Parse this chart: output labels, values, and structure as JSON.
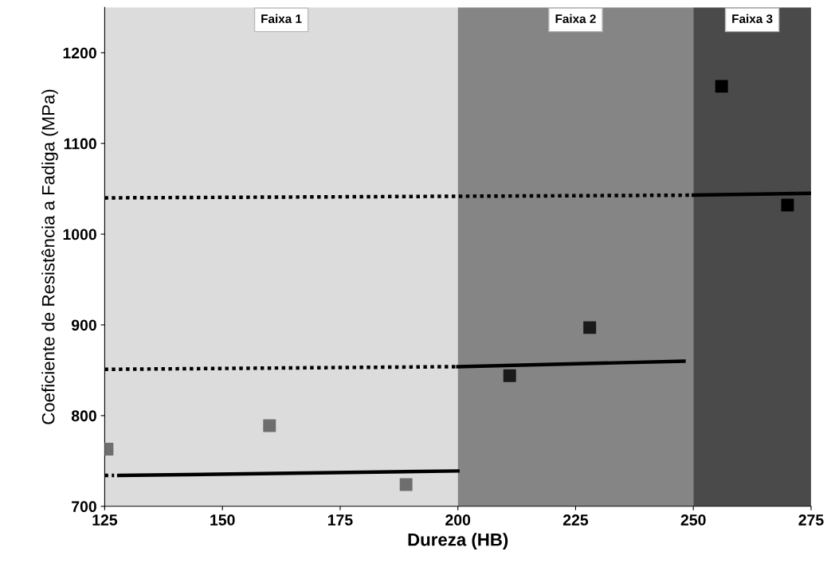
{
  "chart_data": {
    "type": "scatter",
    "xlabel": "Dureza (HB)",
    "ylabel": "Coeficiente de Resistência a Fadiga (MPa)",
    "xlim": [
      125,
      275
    ],
    "xticks": [
      125,
      150,
      175,
      200,
      225,
      250,
      275
    ],
    "ylim": [
      700,
      1250
    ],
    "yticks": [
      700,
      800,
      900,
      1000,
      1100,
      1200
    ],
    "grid": false,
    "marker": "square",
    "bands": [
      {
        "axis": "x",
        "from": 125,
        "to": 200,
        "label": "Faixa 1",
        "color": "#dcdcdc"
      },
      {
        "axis": "x",
        "from": 200,
        "to": 250,
        "label": "Faixa 2",
        "color": "#858585"
      },
      {
        "axis": "x",
        "from": 250,
        "to": 275,
        "label": "Faixa 3",
        "color": "#4a4a4a"
      }
    ],
    "series": [
      {
        "color": "#6e6e6e",
        "x": [
          125.5,
          160,
          189
        ],
        "values": [
          763,
          789,
          724
        ]
      },
      {
        "color": "#1a1a1a",
        "x": [
          211,
          228
        ],
        "values": [
          844,
          897
        ]
      },
      {
        "color": "#000000",
        "x": [
          256,
          270
        ],
        "values": [
          1163,
          1032
        ]
      },
      {
        "type": "line",
        "marker": "none",
        "color": "#000000",
        "line_style": "dotted",
        "x": [
          125,
          127
        ],
        "values": [
          734,
          734
        ]
      },
      {
        "type": "line",
        "marker": "none",
        "color": "#000000",
        "line_style": "solid",
        "x": [
          128,
          200
        ],
        "values": [
          734,
          739
        ]
      },
      {
        "type": "line",
        "marker": "none",
        "color": "#000000",
        "line_style": "dotted",
        "x": [
          125,
          200
        ],
        "values": [
          851,
          854
        ]
      },
      {
        "type": "line",
        "marker": "none",
        "color": "#000000",
        "line_style": "solid",
        "x": [
          200,
          248
        ],
        "values": [
          854,
          860
        ]
      },
      {
        "type": "line",
        "marker": "none",
        "color": "#000000",
        "line_style": "dotted",
        "x": [
          125,
          250
        ],
        "values": [
          1040,
          1043
        ]
      },
      {
        "type": "line",
        "marker": "none",
        "color": "#000000",
        "line_style": "solid",
        "x": [
          250,
          275
        ],
        "values": [
          1043,
          1045
        ]
      }
    ]
  }
}
